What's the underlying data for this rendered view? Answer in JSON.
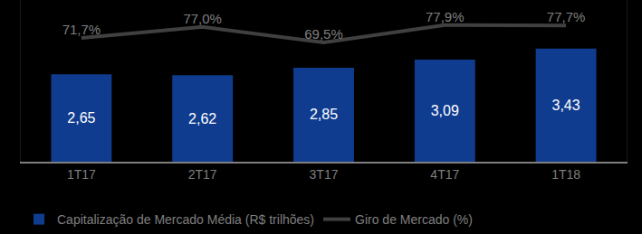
{
  "chart_data": {
    "type": "bar",
    "categories": [
      "1T17",
      "2T17",
      "3T17",
      "4T17",
      "1T18"
    ],
    "series": [
      {
        "name": "Capitalização de Mercado Média (R$ trilhões)",
        "type": "bar",
        "color": "#0f3c8f",
        "values": [
          2.65,
          2.62,
          2.85,
          3.09,
          3.43
        ],
        "value_labels": [
          "2,65",
          "2,62",
          "2,85",
          "3,09",
          "3,43"
        ]
      },
      {
        "name": "Giro de Mercado (%)",
        "type": "line",
        "color": "#404040",
        "axis": "y2",
        "values": [
          71.7,
          77.0,
          69.5,
          77.9,
          77.7
        ],
        "value_labels": [
          "71,7%",
          "77,0%",
          "69,5%",
          "77,9%",
          "77,7%"
        ]
      }
    ],
    "ylim": [
      0,
      4.9
    ],
    "y2lim": [
      12,
      90
    ],
    "data_labels": true,
    "tick_labels": "x",
    "grid": false,
    "legend": "bottom"
  }
}
